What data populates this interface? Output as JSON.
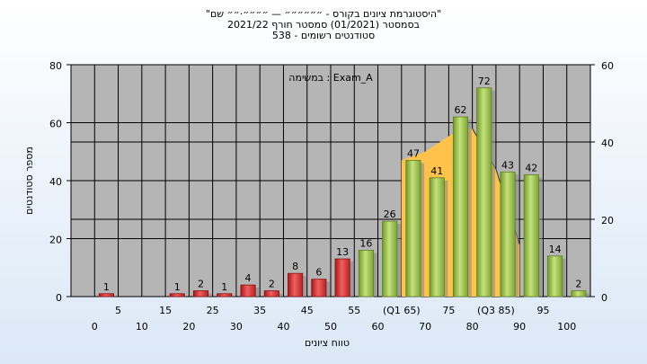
{
  "header": {
    "title_line1": "\"היסטוגרמת ציונים בקורס - ״״״״״״ — ״״״״·״״ שם\"",
    "title_line2": "בסמסטר  (01/2021)  סמסטר חורף  2021/22",
    "title_line3": "סטודנטים רשומים - 538"
  },
  "chart_data": {
    "type": "bar",
    "xlabel": "טווח ציונים",
    "ylabel": "מספר סטודנטים",
    "ylim": [
      0,
      80
    ],
    "y2lim": [
      0,
      60
    ],
    "y_ticks": [
      "0",
      "20",
      "40",
      "60",
      "80"
    ],
    "y2_ticks": [
      "0",
      "20",
      "40",
      "60"
    ],
    "x_tick_labels_upper": [
      "5",
      "15",
      "25",
      "35",
      "45",
      "55",
      "(Q1 65)",
      "75",
      "(Q3 85)",
      "95"
    ],
    "x_tick_labels_lower": [
      "0",
      "10",
      "20",
      "30",
      "40",
      "50",
      "60",
      "70",
      "80",
      "90",
      "100"
    ],
    "annotation": "במשימה : Exam_A",
    "grid": true,
    "bins": [
      0,
      10,
      15,
      20,
      25,
      30,
      35,
      40,
      45,
      50,
      55,
      60,
      65,
      70,
      75,
      80,
      85,
      90,
      95,
      100
    ],
    "values": [
      1,
      0,
      1,
      2,
      1,
      4,
      2,
      8,
      6,
      13,
      16,
      26,
      47,
      41,
      62,
      72,
      43,
      42,
      14,
      2
    ],
    "fail_threshold": 55,
    "overlay_area": {
      "x": [
        65,
        70,
        77.5,
        80,
        85,
        90
      ],
      "y": [
        47,
        50,
        58,
        58,
        44,
        18
      ]
    },
    "colors": {
      "fail_bar": "#d93030",
      "pass_bar": "#9bc44a",
      "area": "#ffc24a",
      "plot_bg": "#b5b5b5"
    }
  }
}
